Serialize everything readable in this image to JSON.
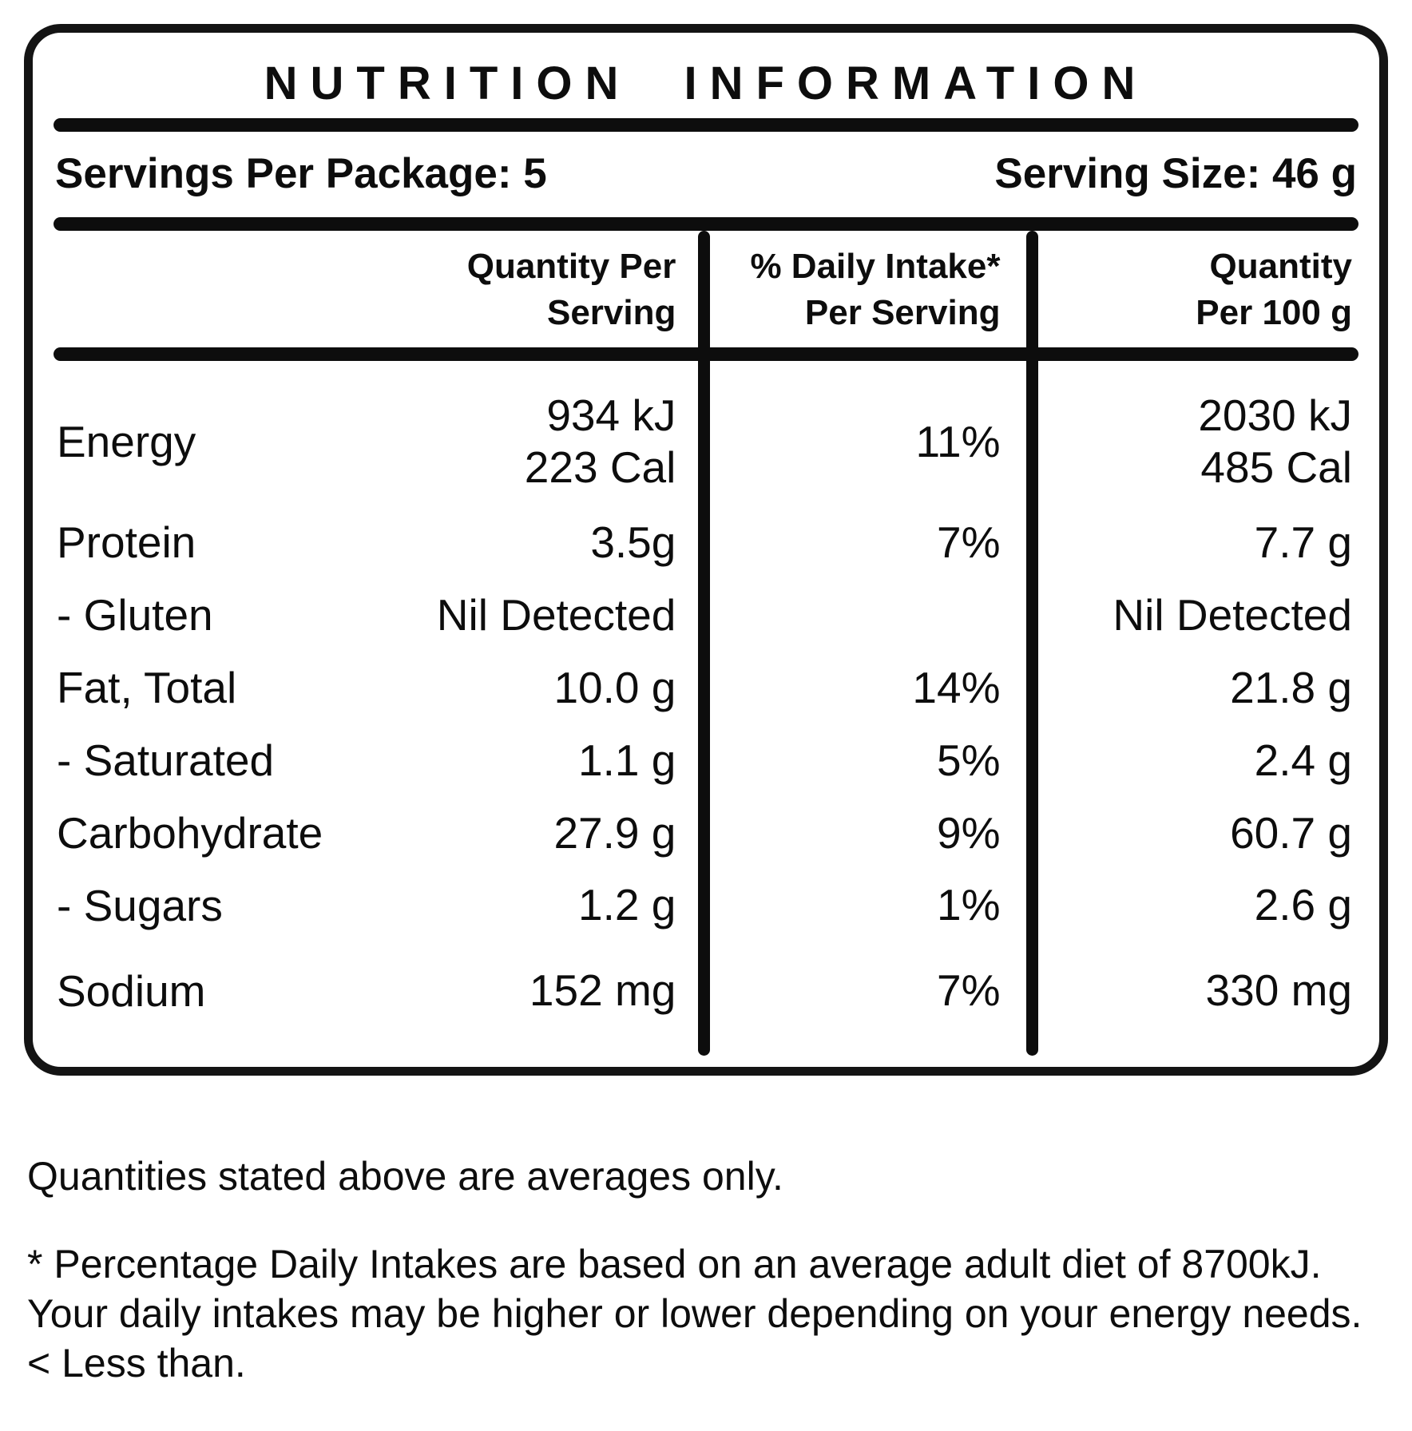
{
  "title": "NUTRITION INFORMATION",
  "servings_line": {
    "per_package": "Servings Per Package: 5",
    "serving_size": "Serving Size: 46 g"
  },
  "table": {
    "headers": {
      "per_serving": "Quantity Per\nServing",
      "daily_intake": "% Daily Intake*\nPer Serving",
      "per_100g": "Quantity\nPer 100 g"
    },
    "rows": [
      {
        "label": "Energy",
        "per_serving": "934 kJ\n223 Cal",
        "daily_intake": "11%",
        "per_100g": "2030 kJ\n485 Cal"
      },
      {
        "label": "Protein",
        "per_serving": "3.5g",
        "daily_intake": "7%",
        "per_100g": "7.7 g"
      },
      {
        "label": "- Gluten",
        "per_serving": "Nil Detected",
        "daily_intake": "",
        "per_100g": "Nil Detected"
      },
      {
        "label": "Fat, Total",
        "per_serving": "10.0 g",
        "daily_intake": "14%",
        "per_100g": "21.8 g"
      },
      {
        "label": "- Saturated",
        "per_serving": "1.1 g",
        "daily_intake": "5%",
        "per_100g": "2.4 g"
      },
      {
        "label": "Carbohydrate",
        "per_serving": "27.9 g",
        "daily_intake": "9%",
        "per_100g": "60.7 g"
      },
      {
        "label": "- Sugars",
        "per_serving": "1.2 g",
        "daily_intake": "1%",
        "per_100g": "2.6 g"
      },
      {
        "label": "Sodium",
        "per_serving": "152 mg",
        "daily_intake": "7%",
        "per_100g": "330 mg"
      }
    ]
  },
  "footnotes": {
    "averages": "Quantities stated above are averages only.",
    "daily_intake_basis": "* Percentage Daily Intakes are based on an average adult diet of 8700kJ.",
    "daily_intake_variation": "Your daily intakes may be higher or lower depending on your energy needs.",
    "less_than": "< Less than."
  }
}
